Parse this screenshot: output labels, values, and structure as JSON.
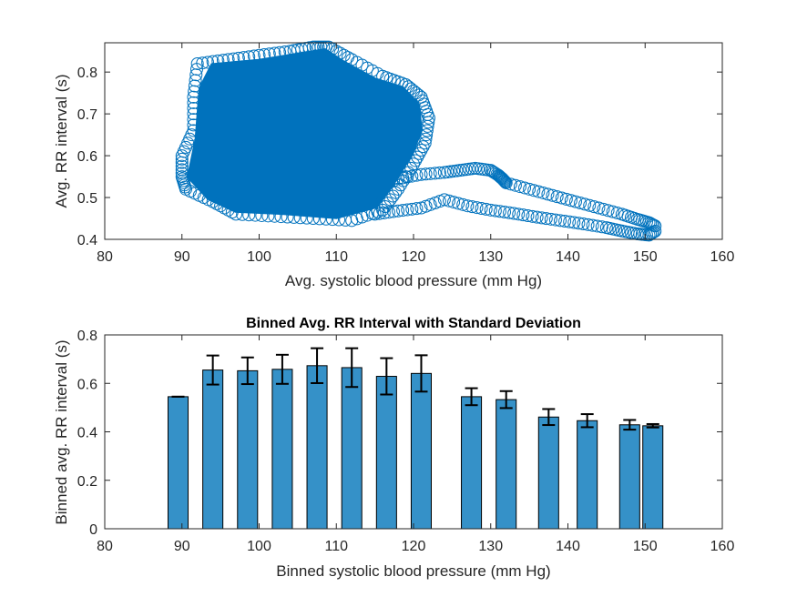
{
  "chart_data": [
    {
      "type": "scatter",
      "title": "",
      "xlabel": "Avg. systolic blood pressure (mm Hg)",
      "ylabel": "Avg. RR interval (s)",
      "xlim": [
        80,
        160
      ],
      "ylim": [
        0.4,
        0.87
      ],
      "xticks": [
        "80",
        "90",
        "100",
        "110",
        "120",
        "130",
        "140",
        "150",
        "160"
      ],
      "yticks": [
        "0.4",
        "0.5",
        "0.6",
        "0.7",
        "0.8"
      ],
      "xtick_values": [
        80,
        90,
        100,
        110,
        120,
        130,
        140,
        150,
        160
      ],
      "ytick_values": [
        0.4,
        0.5,
        0.6,
        0.7,
        0.8
      ],
      "marker": "open-circle",
      "color": "#0072BD",
      "cluster": {
        "x_range": [
          89,
          123
        ],
        "y_range": [
          0.43,
          0.86
        ],
        "center": [
          106,
          0.64
        ]
      },
      "tail": {
        "upper_branch": [
          [
            115,
            0.52
          ],
          [
            118,
            0.545
          ],
          [
            121,
            0.555
          ],
          [
            124,
            0.56
          ],
          [
            126,
            0.565
          ],
          [
            128,
            0.57
          ],
          [
            130,
            0.565
          ],
          [
            131,
            0.553
          ],
          [
            131.5,
            0.545
          ],
          [
            132,
            0.535
          ],
          [
            135,
            0.52
          ],
          [
            138,
            0.505
          ],
          [
            141,
            0.49
          ],
          [
            144,
            0.475
          ],
          [
            147,
            0.46
          ],
          [
            149,
            0.448
          ],
          [
            150.5,
            0.44
          ],
          [
            151.5,
            0.43
          ]
        ],
        "lower_branch": [
          [
            115,
            0.46
          ],
          [
            118,
            0.468
          ],
          [
            121,
            0.475
          ],
          [
            124,
            0.495
          ],
          [
            127,
            0.48
          ],
          [
            130,
            0.47
          ],
          [
            133,
            0.462
          ],
          [
            136,
            0.453
          ],
          [
            139,
            0.445
          ],
          [
            142,
            0.437
          ],
          [
            145,
            0.428
          ],
          [
            147,
            0.42
          ],
          [
            149,
            0.413
          ],
          [
            150.5,
            0.41
          ],
          [
            151.5,
            0.422
          ]
        ]
      }
    },
    {
      "type": "bar",
      "title": "Binned Avg. RR Interval with Standard Deviation",
      "xlabel": "Binned systolic blood pressure (mm Hg)",
      "ylabel": "Binned avg. RR interval (s)",
      "xlim": [
        80,
        160
      ],
      "ylim": [
        0,
        0.8
      ],
      "xticks": [
        "80",
        "90",
        "100",
        "110",
        "120",
        "130",
        "140",
        "150",
        "160"
      ],
      "yticks": [
        "0",
        "0.2",
        "0.4",
        "0.6",
        "0.8"
      ],
      "xtick_values": [
        80,
        90,
        100,
        110,
        120,
        130,
        140,
        150,
        160
      ],
      "ytick_values": [
        0,
        0.2,
        0.4,
        0.6,
        0.8
      ],
      "bar_width": 2.6,
      "color": "#3591C8",
      "x": [
        89.5,
        94,
        98.5,
        103,
        107.5,
        112,
        116.5,
        121,
        127.5,
        132,
        137.5,
        142.5,
        148,
        151
      ],
      "values": [
        0.545,
        0.655,
        0.652,
        0.658,
        0.673,
        0.665,
        0.629,
        0.641,
        0.545,
        0.533,
        0.461,
        0.446,
        0.429,
        0.425
      ],
      "std": [
        0.0,
        0.06,
        0.055,
        0.06,
        0.072,
        0.08,
        0.075,
        0.075,
        0.035,
        0.035,
        0.033,
        0.027,
        0.02,
        0.007
      ]
    }
  ]
}
